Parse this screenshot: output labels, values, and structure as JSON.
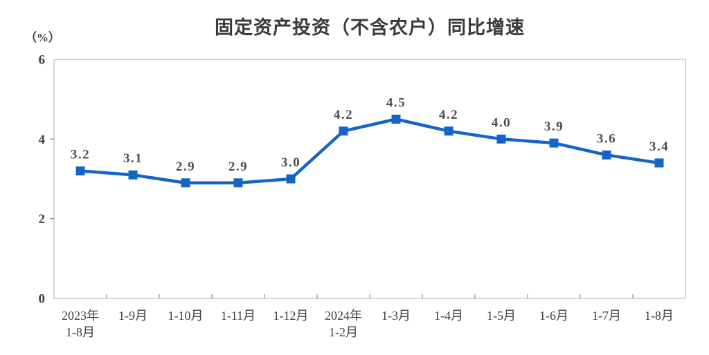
{
  "title": "固定资产投资（不含农户）同比增速",
  "y_axis_unit": "（%）",
  "chart_data": {
    "type": "line",
    "title": "固定资产投资（不含农户）同比增速",
    "ylabel": "（%）",
    "categories": [
      "2023年\n1-8月",
      "1-9月",
      "1-10月",
      "1-11月",
      "1-12月",
      "2024年\n1-2月",
      "1-3月",
      "1-4月",
      "1-5月",
      "1-6月",
      "1-7月",
      "1-8月"
    ],
    "values": [
      3.2,
      3.1,
      2.9,
      2.9,
      3.0,
      4.2,
      4.5,
      4.2,
      4.0,
      3.9,
      3.6,
      3.4
    ],
    "data_labels": [
      "3.2",
      "3.1",
      "2.9",
      "2.9",
      "3.0",
      "4.2",
      "4.5",
      "4.2",
      "4.0",
      "3.9",
      "3.6",
      "3.4"
    ],
    "ylim": [
      0,
      6
    ],
    "yticks": [
      0,
      2,
      4,
      6
    ],
    "grid": false,
    "legend": "none",
    "line_color": "#1565C8",
    "marker": "square",
    "axis_border_color": "#c9c9c9",
    "tick_color": "#8f8f8f",
    "label_color": "#404040",
    "data_label_color": "#4d4d4d"
  }
}
